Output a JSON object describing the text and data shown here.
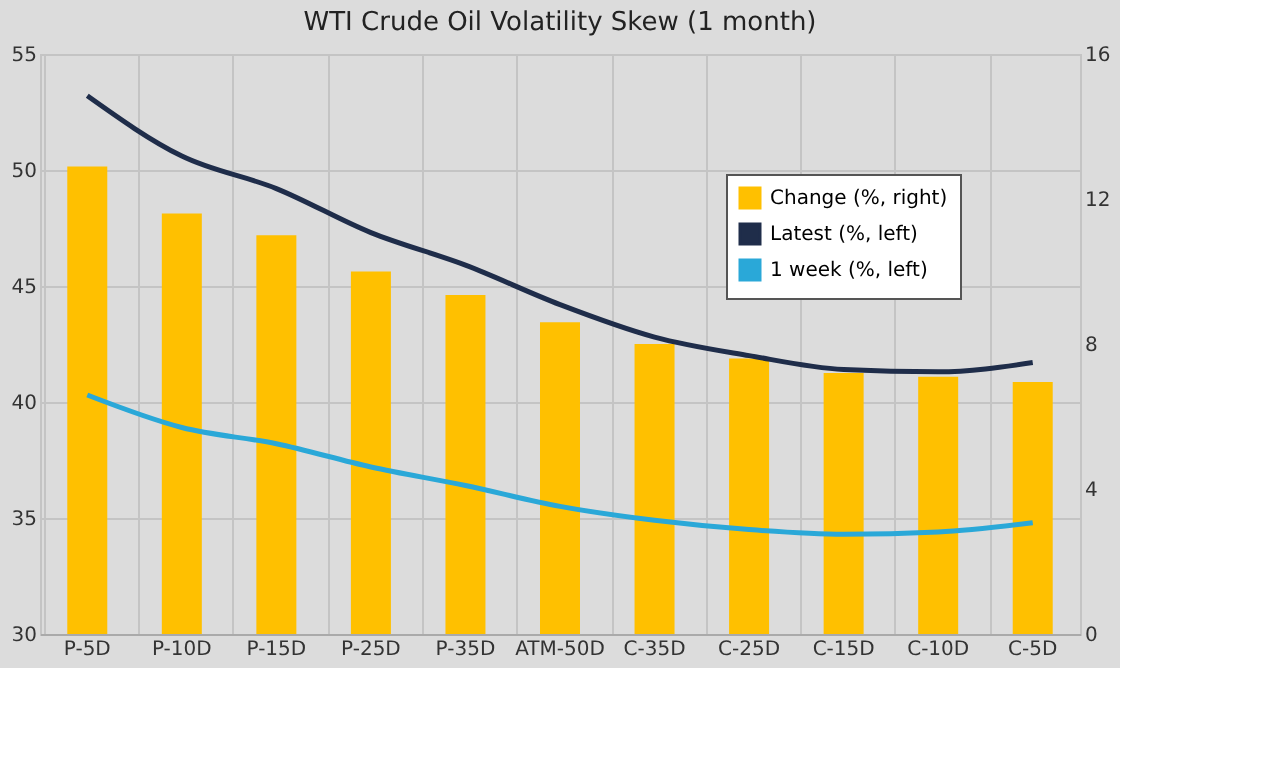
{
  "chart_data": {
    "type": "bar",
    "title": "WTI Crude Oil Volatility  Skew (1 month)",
    "categories": [
      "P-5D",
      "P-10D",
      "P-15D",
      "P-25D",
      "P-35D",
      "ATM-50D",
      "C-35D",
      "C-25D",
      "C-15D",
      "C-10D",
      "C-5D"
    ],
    "series": [
      {
        "name": "Change (%, right)",
        "axis": "y2",
        "color": "#ffc000",
        "values": [
          12.9,
          11.6,
          11.0,
          10.0,
          9.35,
          8.6,
          8.0,
          7.6,
          7.2,
          7.1,
          6.95
        ]
      },
      {
        "name": "Latest (%, left)",
        "type": "line",
        "color": "#1f2d4a",
        "values": [
          53.2,
          50.6,
          49.2,
          47.3,
          45.9,
          44.2,
          42.8,
          42.0,
          41.4,
          41.3,
          41.7
        ]
      },
      {
        "name": "1 week (%, left)",
        "type": "line",
        "color": "#2aa8d8",
        "values": [
          40.3,
          38.9,
          38.2,
          37.2,
          36.4,
          35.5,
          34.9,
          34.5,
          34.3,
          34.4,
          34.8
        ]
      }
    ],
    "ylim": [
      30,
      55
    ],
    "yticks": [
      30,
      35,
      40,
      45,
      50,
      55
    ],
    "y2lim": [
      0,
      16
    ],
    "y2ticks": [
      0,
      4,
      8,
      12,
      16
    ],
    "grid": true,
    "legend": "top right"
  }
}
